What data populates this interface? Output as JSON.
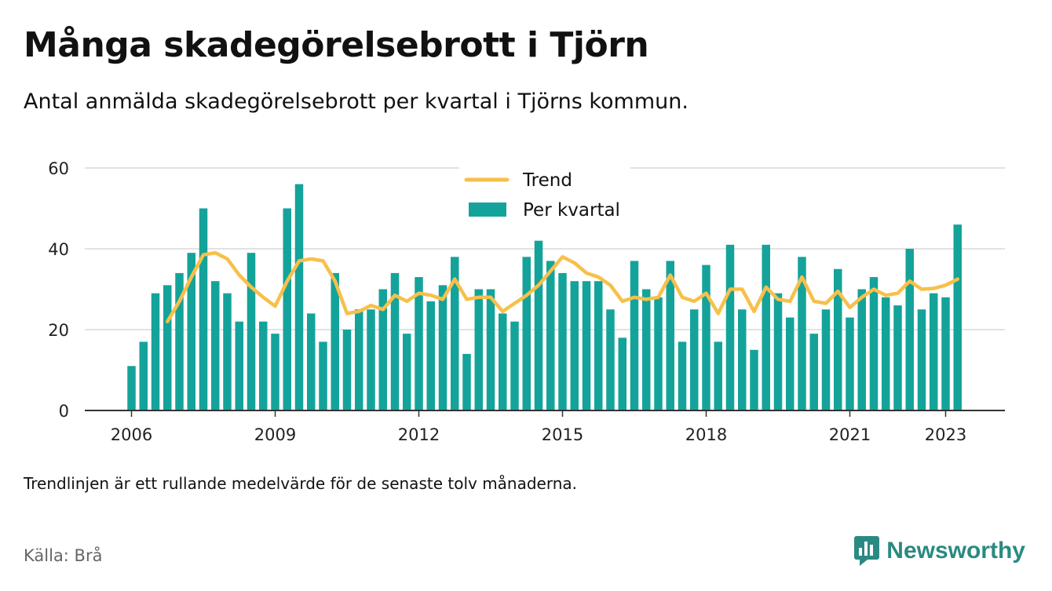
{
  "title": "Många skadegörelsebrott i Tjörn",
  "subtitle": "Antal anmälda skadegörelsebrott per kvartal i Tjörns kommun.",
  "note": "Trendlinjen är ett rullande medelvärde för de senaste tolv månaderna.",
  "source": "Källa: Brå",
  "brand": {
    "name": "Newsworthy",
    "icon": "newsworthy-logo-icon"
  },
  "colors": {
    "bars": "#14a39a",
    "trend": "#f7c04a",
    "grid": "#d8d8d8",
    "axis": "#333333",
    "brand": "#2a8a82"
  },
  "chart_data": {
    "type": "bar",
    "xlabel": "",
    "ylabel": "",
    "ylim": [
      0,
      60
    ],
    "yticks": [
      0,
      20,
      40,
      60
    ],
    "xticks": [
      "2006",
      "2009",
      "2012",
      "2015",
      "2018",
      "2021",
      "2023"
    ],
    "xtick_quarters": [
      0,
      12,
      24,
      36,
      48,
      60,
      68
    ],
    "start": "2006 Q1",
    "legend_position": "top-center",
    "grid": true,
    "series": [
      {
        "name": "Per kvartal",
        "kind": "bar",
        "values": [
          11,
          17,
          29,
          31,
          34,
          39,
          50,
          32,
          29,
          22,
          39,
          22,
          19,
          50,
          56,
          24,
          17,
          34,
          20,
          25,
          25,
          30,
          34,
          19,
          33,
          27,
          31,
          38,
          14,
          30,
          30,
          24,
          22,
          38,
          42,
          37,
          34,
          32,
          32,
          32,
          25,
          18,
          37,
          30,
          28,
          37,
          17,
          25,
          36,
          17,
          41,
          25,
          15,
          41,
          29,
          23,
          38,
          19,
          25,
          35,
          23,
          30,
          33,
          28,
          26,
          40,
          25,
          29,
          28,
          46
        ]
      },
      {
        "name": "Trend",
        "kind": "line",
        "start_index": 3,
        "values": [
          22,
          27,
          33,
          38.5,
          39,
          37.5,
          33.5,
          30.5,
          28,
          25.8,
          32,
          37,
          37.5,
          37,
          32,
          24,
          24.5,
          26,
          25,
          28.5,
          27,
          29,
          28.5,
          27.5,
          32.5,
          27.5,
          28,
          28,
          24.5,
          26.5,
          28.5,
          31,
          34.5,
          38,
          36.5,
          34,
          33,
          31,
          27,
          28,
          27.5,
          28,
          33.5,
          28,
          27,
          29,
          24,
          30,
          30,
          24.5,
          30.5,
          27.5,
          27,
          33,
          27,
          26.5,
          29.5,
          25.5,
          28,
          30,
          28.5,
          29,
          32,
          30,
          30.2,
          31,
          32.5
        ]
      }
    ]
  }
}
